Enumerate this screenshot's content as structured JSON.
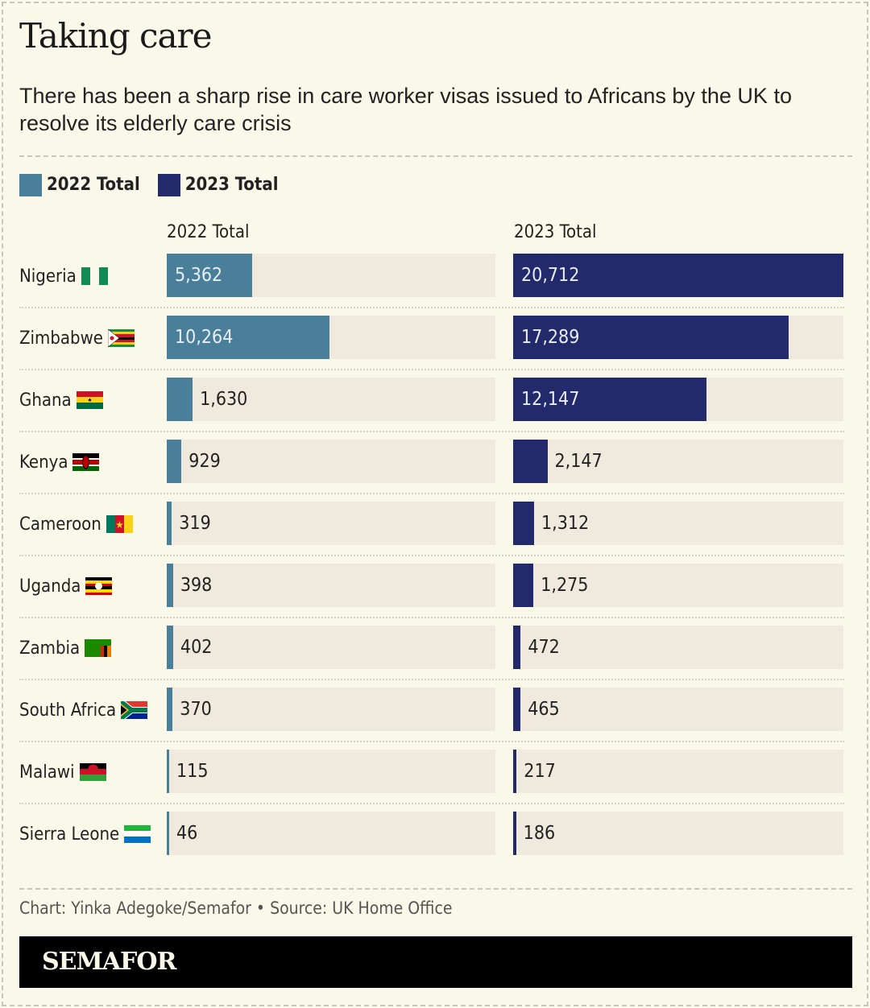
{
  "title": "Taking care",
  "subtitle": "There has been a sharp rise in care worker visas issued to Africans by the UK to resolve its elderly care crisis",
  "credit": "Chart: Yinka Adegoke/Semafor • Source: UK Home Office",
  "brand": "SEMAFOR",
  "colors": {
    "y2022": "#4a7f99",
    "y2023": "#232a6b",
    "track": "#efeadd"
  },
  "chart_data": {
    "type": "bar",
    "orientation": "horizontal",
    "legend": [
      "2022 Total",
      "2023 Total"
    ],
    "legend_placement": "top-left",
    "column_headers": [
      "2022 Total",
      "2023 Total"
    ],
    "categories": [
      "Nigeria",
      "Zimbabwe",
      "Ghana",
      "Kenya",
      "Cameroon",
      "Uganda",
      "Zambia",
      "South Africa",
      "Malawi",
      "Sierra Leone"
    ],
    "flags": [
      "nigeria",
      "zimbabwe",
      "ghana",
      "kenya",
      "cameroon",
      "uganda",
      "zambia",
      "south-africa",
      "malawi",
      "sierra-leone"
    ],
    "series": [
      {
        "name": "2022 Total",
        "values": [
          5362,
          10264,
          1630,
          929,
          319,
          398,
          402,
          370,
          115,
          46
        ],
        "labels": [
          "5,362",
          "10,264",
          "1,630",
          "929",
          "319",
          "398",
          "402",
          "370",
          "115",
          "46"
        ]
      },
      {
        "name": "2023 Total",
        "values": [
          20712,
          17289,
          12147,
          2147,
          1312,
          1275,
          472,
          465,
          217,
          186
        ],
        "labels": [
          "20,712",
          "17,289",
          "12,147",
          "2,147",
          "1,312",
          "1,275",
          "472",
          "465",
          "217",
          "186"
        ]
      }
    ],
    "xlim": [
      0,
      20712
    ]
  }
}
